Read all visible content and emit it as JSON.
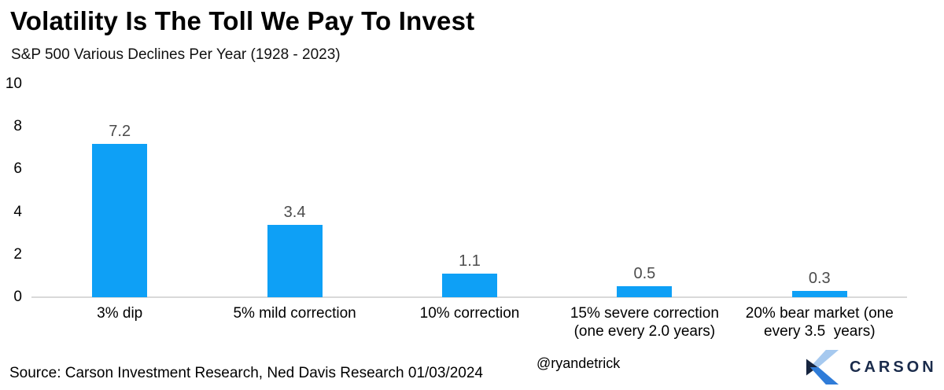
{
  "header": {
    "title": "Volatility Is The Toll We Pay To Invest",
    "subtitle": "S&P 500 Various Declines Per Year (1928 - 2023)"
  },
  "chart_data": {
    "type": "bar",
    "title": "Volatility Is The Toll We Pay To Invest",
    "subtitle": "S&P 500 Various Declines Per Year (1928 - 2023)",
    "categories": [
      "3% dip",
      "5% mild correction",
      "10% correction",
      "15% severe correction (one every 2.0 years)",
      "20% bear market (one every 3.5 years)"
    ],
    "categories_display": [
      "3% dip",
      "5% mild correction",
      "10% correction",
      "15% severe correction\n(one every 2.0 years)",
      "20% bear market (one\nevery 3.5  years)"
    ],
    "values": [
      7.2,
      3.4,
      1.1,
      0.5,
      0.3
    ],
    "value_labels": [
      "7.2",
      "3.4",
      "1.1",
      "0.5",
      "0.3"
    ],
    "ylim": [
      0,
      10
    ],
    "yticks": [
      10,
      8,
      6,
      4,
      2,
      0
    ],
    "grid": false,
    "legend": "none",
    "bar_color": "#0EA0F6"
  },
  "footer": {
    "source": "Source: Carson Investment Research, Ned Davis Research 01/03/2024",
    "handle": "@ryandetrick",
    "brand": "CARSON"
  },
  "colors": {
    "bar": "#0EA0F6",
    "value_label": "#4C4C4C",
    "baseline": "#D9D9D9",
    "brand_navy": "#1A2B4B",
    "brand_blue": "#2F7CD8",
    "brand_light": "#A6C9EF"
  }
}
